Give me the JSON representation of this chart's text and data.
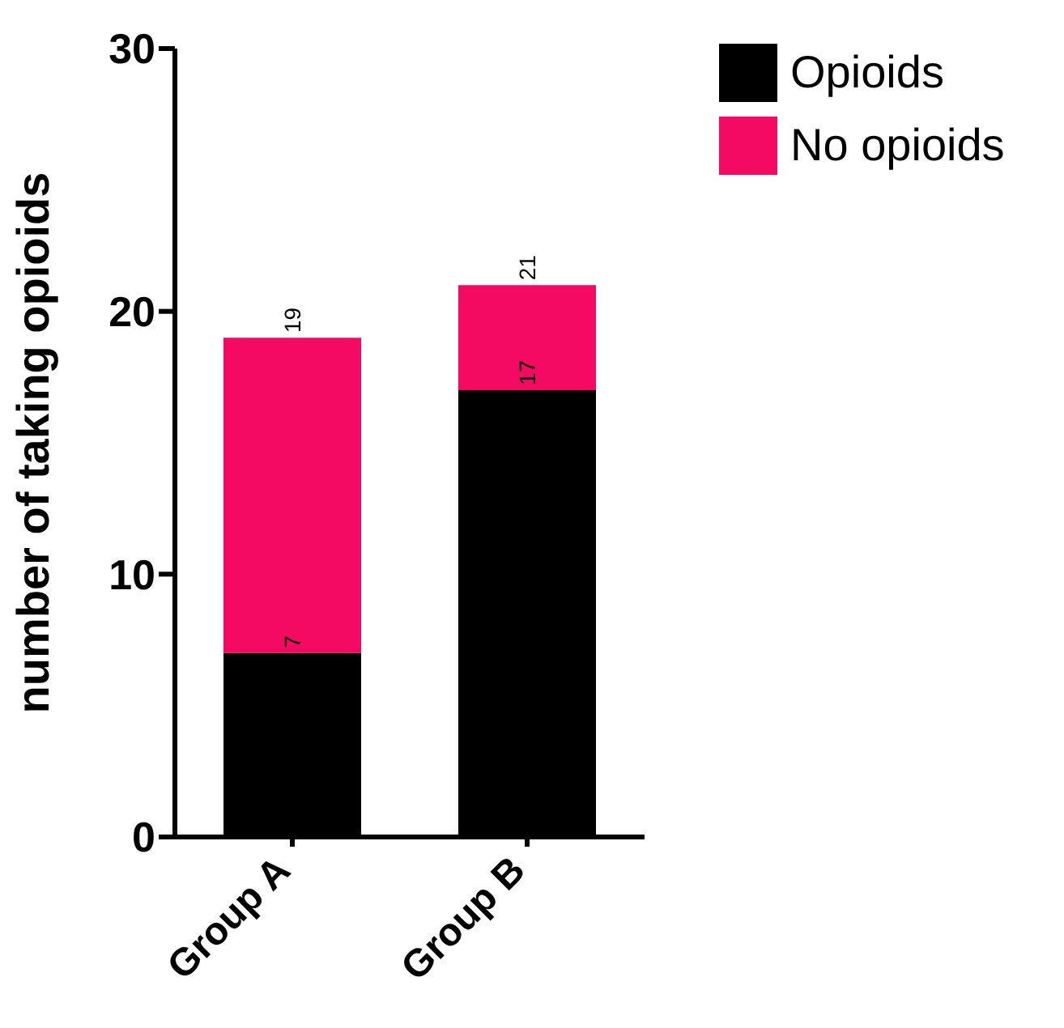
{
  "chart_data": {
    "type": "bar",
    "stacked": true,
    "ylabel": "number of taking opioids",
    "categories": [
      "Group A",
      "Group B"
    ],
    "series": [
      {
        "name": "Opioids",
        "color": "#000000",
        "values": [
          7,
          17
        ],
        "value_labels": [
          "7",
          "17"
        ]
      },
      {
        "name": "No opioids",
        "color": "#f50a63",
        "values": [
          12,
          4
        ]
      }
    ],
    "totals": [
      "19",
      "21"
    ],
    "ylim": [
      0,
      30
    ],
    "yticks": [
      0,
      10,
      20,
      30
    ],
    "legend": "top right"
  }
}
